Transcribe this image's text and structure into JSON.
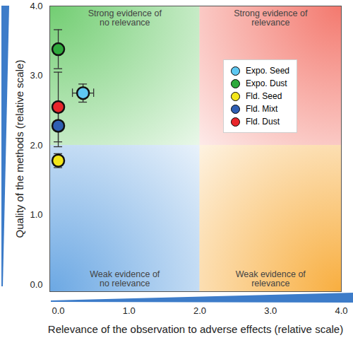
{
  "chart_data": {
    "type": "scatter",
    "xlabel": "Relevance of the observation to adverse effects (relative scale)",
    "ylabel": "Quality of the methods (relative scale)",
    "xlim": [
      -0.12,
      4
    ],
    "ylim": [
      -0.1,
      4
    ],
    "xticks": [
      0,
      1,
      2,
      3,
      4
    ],
    "yticks": [
      0,
      1,
      2,
      3,
      4
    ],
    "grid": false,
    "legend": "upper right",
    "marker": "circle",
    "series": [
      {
        "name": "Expo. Seed",
        "color": "#5ec8f2",
        "x": [
          0.35
        ],
        "y": [
          2.75
        ],
        "x_error": [
          0.15
        ],
        "y_error": [
          0.13
        ]
      },
      {
        "name": "Expo. Dust",
        "color": "#2eaa3c",
        "x": [
          0
        ],
        "y": [
          3.38
        ],
        "y_error": [
          0.28
        ]
      },
      {
        "name": "Fld. Seed",
        "color": "#f3e61a",
        "x": [
          0
        ],
        "y": [
          1.78
        ],
        "y_error": [
          0.1
        ]
      },
      {
        "name": "Fld. Mixt",
        "color": "#2f5fb3",
        "x": [
          0
        ],
        "y": [
          2.28
        ],
        "y_error": [
          0.3
        ]
      },
      {
        "name": "Fld. Dust",
        "color": "#e8262b",
        "x": [
          0
        ],
        "y": [
          2.55
        ],
        "y_error": [
          0.5
        ]
      }
    ],
    "quadrants": [
      {
        "label": "Strong evidence of\nno relevance",
        "x": [
          -0.12,
          2
        ],
        "y": [
          2,
          4
        ],
        "color": "#62c862"
      },
      {
        "label": "Strong evidence of\nrelevance",
        "x": [
          2,
          4
        ],
        "y": [
          2,
          4
        ],
        "color": "#f26a5e"
      },
      {
        "label": "Weak evidence of\nno relevance",
        "x": [
          -0.12,
          2
        ],
        "y": [
          -0.1,
          2
        ],
        "color": "#5b9ee0"
      },
      {
        "label": "Weak evidence of\nrelevance",
        "x": [
          2,
          4
        ],
        "y": [
          -0.1,
          2
        ],
        "color": "#f7a52a"
      }
    ]
  }
}
